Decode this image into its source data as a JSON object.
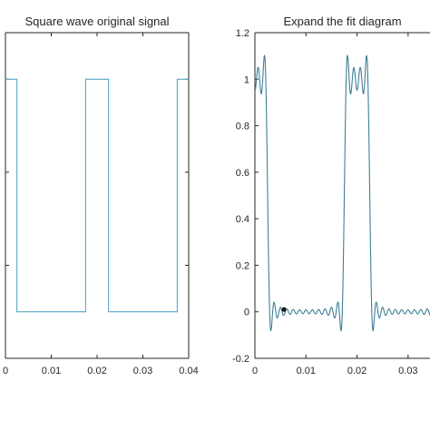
{
  "chart_data": [
    {
      "type": "line",
      "title": "Square wave original signal",
      "xlabel": "",
      "ylabel": "",
      "xlim": [
        0,
        0.04
      ],
      "ylim": [
        -0.2,
        1.2
      ],
      "xticks": [
        {
          "value": 0,
          "label": "0"
        },
        {
          "value": 0.01,
          "label": "0.01"
        },
        {
          "value": 0.02,
          "label": "0.02"
        },
        {
          "value": 0.03,
          "label": "0.03"
        },
        {
          "value": 0.04,
          "label": "0.04"
        }
      ],
      "yticks": [],
      "grid": false,
      "series": [
        {
          "color": "#5aa7c9",
          "x": [
            0,
            0.0025,
            0.0025,
            0.0175,
            0.0175,
            0.0225,
            0.0225,
            0.0375,
            0.0375,
            0.04
          ],
          "y": [
            1,
            1,
            0,
            0,
            1,
            1,
            0,
            0,
            1,
            1
          ]
        }
      ]
    },
    {
      "type": "line",
      "title": "Expand the fit diagram",
      "xlabel": "",
      "ylabel": "",
      "xlim": [
        0,
        0.035
      ],
      "ylim": [
        -0.2,
        1.2
      ],
      "xticks": [
        {
          "value": 0,
          "label": "0"
        },
        {
          "value": 0.01,
          "label": "0.01"
        },
        {
          "value": 0.02,
          "label": "0.02"
        },
        {
          "value": 0.03,
          "label": "0.03"
        }
      ],
      "yticks": [
        {
          "value": -0.2,
          "label": "-0.2"
        },
        {
          "value": 0,
          "label": "0"
        },
        {
          "value": 0.2,
          "label": "0.2"
        },
        {
          "value": 0.4,
          "label": "0.4"
        },
        {
          "value": 0.6,
          "label": "0.6"
        },
        {
          "value": 0.8,
          "label": "0.8"
        },
        {
          "value": 1,
          "label": "1"
        },
        {
          "value": 1.2,
          "label": "1.2"
        }
      ],
      "grid": false,
      "series": [
        {
          "color": "#3f7f98",
          "fourier": {
            "period": 0.02,
            "duty": 0.25,
            "pulse_start": -0.0025,
            "harmonics": 15
          },
          "x_range": [
            0,
            0.035
          ]
        }
      ],
      "markers": [
        {
          "x": 0.0057,
          "y": 0.01,
          "color": "#1a1a1a"
        }
      ]
    }
  ]
}
